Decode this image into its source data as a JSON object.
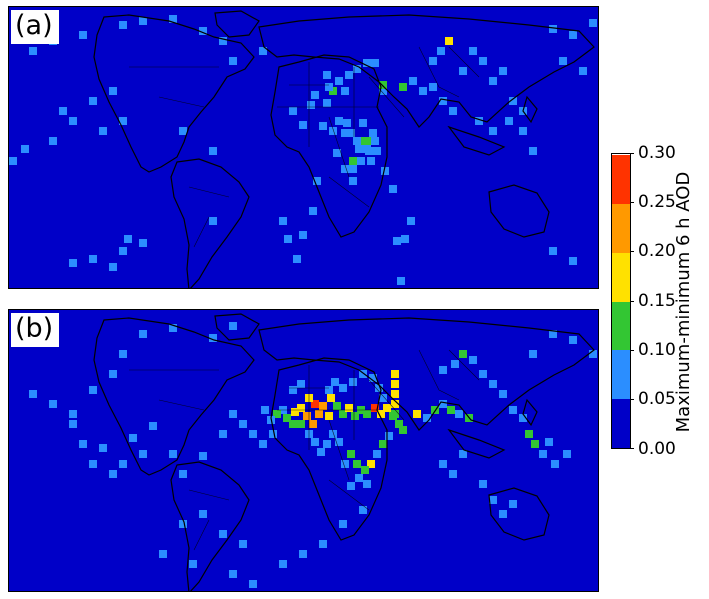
{
  "panels": [
    {
      "label": "(a)"
    },
    {
      "label": "(b)"
    }
  ],
  "colorbar": {
    "label": "Maximum-minimum 6 h AOD",
    "ticks": [
      "0.00",
      "0.05",
      "0.10",
      "0.15",
      "0.20",
      "0.25",
      "0.30"
    ],
    "bins": [
      {
        "range": [
          0.0,
          0.05
        ],
        "color": "#0000c8"
      },
      {
        "range": [
          0.05,
          0.1
        ],
        "color": "#2b8eff"
      },
      {
        "range": [
          0.1,
          0.15
        ],
        "color": "#33c633"
      },
      {
        "range": [
          0.15,
          0.2
        ],
        "color": "#ffe100"
      },
      {
        "range": [
          0.2,
          0.25
        ],
        "color": "#ff9900"
      },
      {
        "range": [
          0.25,
          0.3
        ],
        "color": "#ff3300"
      }
    ]
  },
  "map": {
    "background_color": "#0000c8",
    "coastline_color": "#000000"
  }
}
